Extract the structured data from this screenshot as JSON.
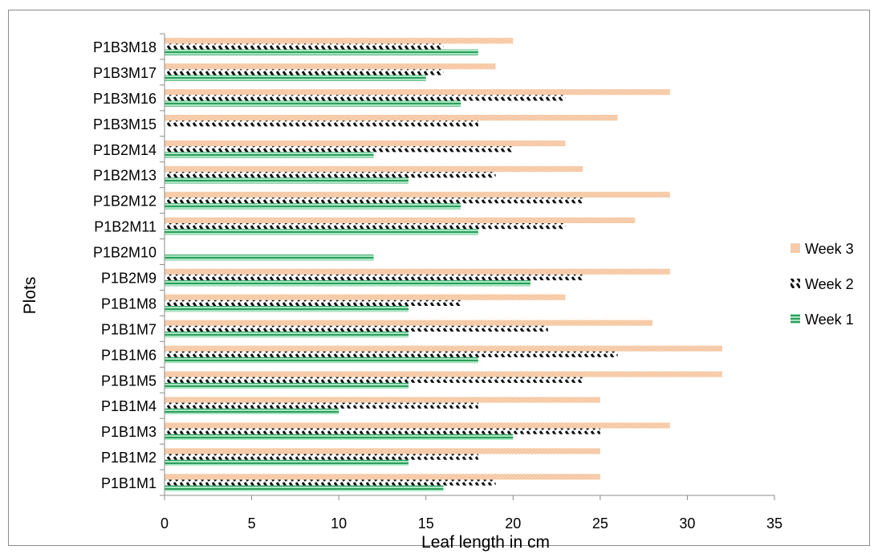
{
  "chart_data": {
    "type": "bar",
    "orientation": "horizontal",
    "title": "",
    "xlabel": "Leaf length in cm",
    "ylabel": "Plots",
    "xlim": [
      0,
      35
    ],
    "xticks": [
      "0",
      "5",
      "10",
      "15",
      "20",
      "25",
      "30",
      "35"
    ],
    "grid": false,
    "legend_position": "right",
    "categories": [
      "P1B1M1",
      "P1B1M2",
      "P1B1M3",
      "P1B1M4",
      "P1B1M5",
      "P1B1M6",
      "P1B1M7",
      "P1B1M8",
      "P1B2M9",
      "P1B2M10",
      "P1B2M11",
      "P1B2M12",
      "P1B2M13",
      "P1B2M14",
      "P1B3M15",
      "P1B3M16",
      "P1B3M17",
      "P1B3M18"
    ],
    "series": [
      {
        "name": "Week 1",
        "color": "#3cb371",
        "pattern": "horizontal-stripes",
        "values": [
          16,
          14,
          20,
          10,
          14,
          18,
          14,
          14,
          21,
          12,
          18,
          17,
          14,
          12,
          0,
          17,
          15,
          18
        ]
      },
      {
        "name": "Week 2",
        "color": "#000000",
        "pattern": "diagonal-dashes",
        "values": [
          19,
          18,
          25,
          18,
          24,
          26,
          22,
          17,
          24,
          0,
          23,
          24,
          19,
          20,
          18,
          23,
          16,
          16
        ]
      },
      {
        "name": "Week 3",
        "color": "#f8c9a3",
        "pattern": "dotted",
        "values": [
          25,
          25,
          29,
          25,
          32,
          32,
          28,
          23,
          29,
          0,
          27,
          29,
          24,
          23,
          26,
          29,
          19,
          20
        ]
      }
    ],
    "legend_order": [
      "Week 3",
      "Week 2",
      "Week 1"
    ]
  }
}
